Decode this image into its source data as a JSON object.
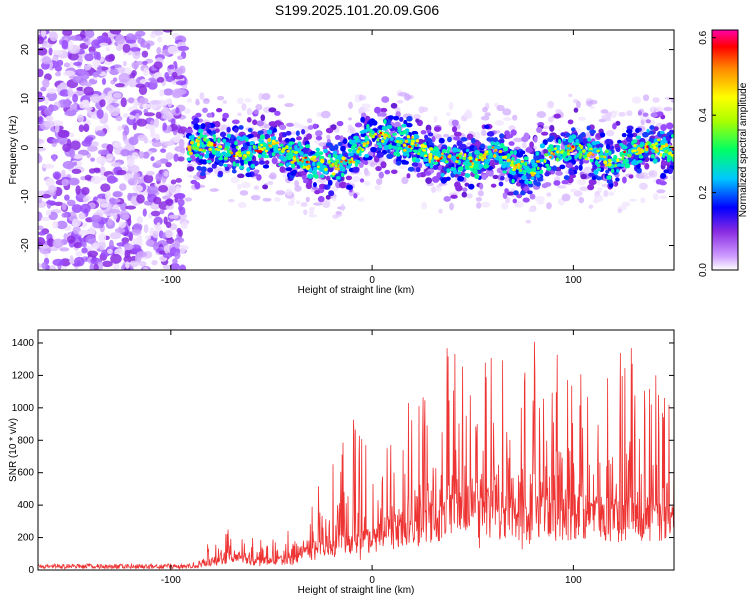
{
  "title": "S199.2025.101.20.09.G06",
  "chart_data": [
    {
      "type": "heatmap",
      "xlabel": "Height of straight line (km)",
      "ylabel": "Frequency (Hz)",
      "xlim": [
        -166,
        150
      ],
      "ylim": [
        -25,
        24
      ],
      "xticks": [
        "-100",
        "0",
        "100"
      ],
      "xtick_values": [
        -100,
        0,
        100
      ],
      "yticks": [
        "20",
        "10",
        "0",
        "-10",
        "-20"
      ],
      "ytick_values": [
        20,
        10,
        0,
        -10,
        -20
      ],
      "noise_region_x": [
        -166,
        -93
      ],
      "signal_region_x": [
        -93,
        150
      ],
      "trace_centerline": {
        "x": [
          -93,
          -80,
          -70,
          -60,
          -50,
          -40,
          -30,
          -20,
          -10,
          0,
          10,
          20,
          30,
          40,
          50,
          60,
          70,
          80,
          90,
          100,
          110,
          120,
          130,
          140,
          150
        ],
        "y": [
          0,
          0.5,
          -1,
          -1,
          0.5,
          -1.5,
          -3,
          -4,
          -2,
          3,
          2,
          0.5,
          -2,
          -2.5,
          -3,
          -0.5,
          -3.5,
          -4.5,
          -1,
          0,
          -1.5,
          -3,
          -0.5,
          0.5,
          -1
        ]
      },
      "colorbar": {
        "label": "Normalized spectral amplitude",
        "range": [
          0.0,
          0.62
        ],
        "ticks": [
          "0.0",
          "0.2",
          "0.4",
          "0.6"
        ],
        "tick_values": [
          0.0,
          0.2,
          0.4,
          0.6
        ],
        "colors": [
          "#ffffff",
          "#8a2be2",
          "#0000ff",
          "#00c8ff",
          "#00ff66",
          "#ffff00",
          "#ff8800",
          "#ff0000",
          "#ff00aa"
        ]
      }
    },
    {
      "type": "line",
      "xlabel": "Height of straight line (km)",
      "ylabel": "SNR (10 * v/v)",
      "xlim": [
        -166,
        150
      ],
      "ylim": [
        0,
        1480
      ],
      "xticks": [
        "-100",
        "0",
        "100"
      ],
      "xtick_values": [
        -100,
        0,
        100
      ],
      "yticks": [
        "0",
        "200",
        "400",
        "600",
        "800",
        "1000",
        "1200",
        "1400"
      ],
      "ytick_values": [
        0,
        200,
        400,
        600,
        800,
        1000,
        1200,
        1400
      ],
      "color": "#ee3333",
      "envelope": {
        "x": [
          -166,
          -90,
          -80,
          -70,
          -60,
          -50,
          -40,
          -30,
          -20,
          -10,
          0,
          10,
          20,
          30,
          40,
          50,
          60,
          70,
          80,
          90,
          100,
          110,
          120,
          130,
          140,
          150
        ],
        "base": [
          15,
          15,
          40,
          80,
          70,
          60,
          70,
          110,
          150,
          190,
          200,
          240,
          280,
          330,
          360,
          380,
          370,
          360,
          360,
          350,
          360,
          350,
          340,
          350,
          340,
          340
        ],
        "peak": [
          40,
          40,
          200,
          260,
          200,
          180,
          330,
          470,
          640,
          1000,
          900,
          820,
          1100,
          1350,
          1420,
          1300,
          1380,
          1330,
          1420,
          1360,
          1330,
          1320,
          1330,
          1420,
          1300,
          1280
        ]
      }
    }
  ]
}
